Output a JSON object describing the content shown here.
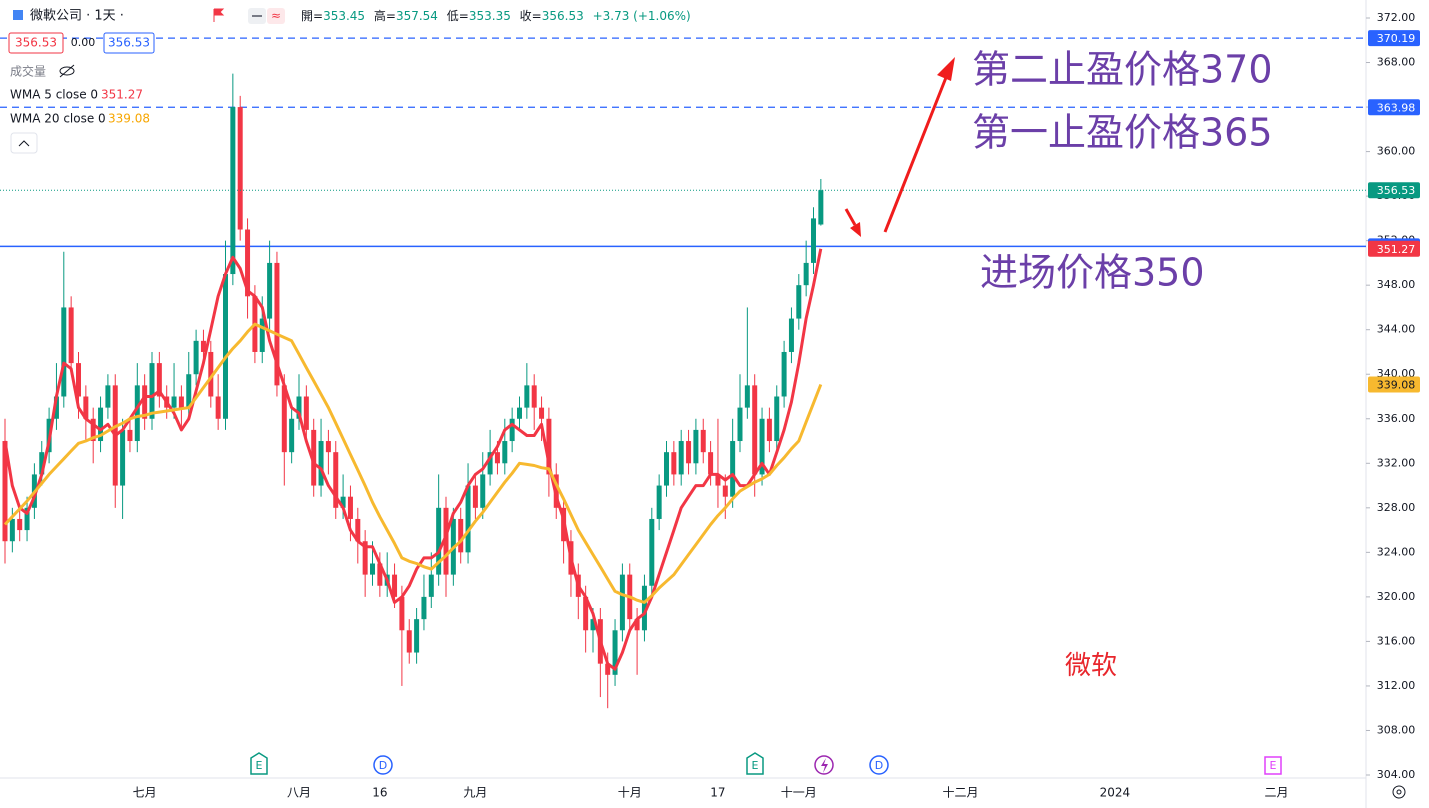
{
  "header": {
    "symbol": "微軟公司 · 1天 ·",
    "spread": "0.00",
    "open_label": "開=",
    "high_label": "高=",
    "low_label": "低=",
    "close_label": "收=",
    "change": "+3.73 (+1.06%)",
    "volume_label": "成交量",
    "wma5_label": "WMA 5 close 0",
    "wma20_label": "WMA 20 close 0"
  },
  "chart_data": {
    "type": "candlestick",
    "categories": [
      null,
      null,
      null,
      null,
      null,
      null,
      null,
      null,
      null,
      null,
      null,
      null,
      null,
      null,
      null,
      null,
      null,
      null,
      null,
      "七月",
      null,
      null,
      null,
      null,
      null,
      null,
      null,
      null,
      null,
      null,
      null,
      null,
      null,
      null,
      null,
      null,
      null,
      null,
      null,
      null,
      "八月",
      null,
      null,
      null,
      null,
      null,
      null,
      null,
      null,
      null,
      null,
      "16",
      null,
      null,
      null,
      null,
      null,
      null,
      null,
      null,
      null,
      null,
      null,
      null,
      "九月",
      null,
      null,
      null,
      null,
      null,
      null,
      null,
      null,
      null,
      null,
      null,
      null,
      null,
      null,
      null,
      null,
      null,
      null,
      null,
      null,
      "十月",
      null,
      null,
      null,
      null,
      null,
      null,
      null,
      null,
      null,
      null,
      null,
      "17",
      null,
      null,
      null,
      null,
      null,
      null,
      null,
      null,
      null,
      null,
      "十一月",
      null,
      null,
      null,
      null,
      null,
      null,
      null,
      null,
      null,
      null,
      null,
      null,
      null,
      null,
      null,
      null,
      null,
      null,
      null,
      null,
      null,
      "十二月",
      null,
      null,
      null,
      null,
      null,
      null,
      null,
      null,
      null,
      null,
      null,
      null,
      null,
      null,
      null,
      null,
      null,
      null,
      null,
      null,
      "2024",
      null,
      null,
      null,
      null,
      null,
      null,
      null,
      null,
      null,
      null,
      null,
      null,
      null,
      null,
      null,
      null,
      null,
      null,
      null,
      null,
      null,
      "二月",
      null,
      null,
      null,
      null,
      null,
      null,
      null,
      null,
      null,
      null,
      null
    ],
    "candles": [
      [
        334,
        336,
        323,
        325
      ],
      [
        325,
        328,
        324,
        327
      ],
      [
        327,
        328,
        325,
        326
      ],
      [
        326,
        329,
        325,
        328
      ],
      [
        328,
        332,
        327,
        331
      ],
      [
        331,
        334,
        330,
        333
      ],
      [
        333,
        337,
        332,
        336
      ],
      [
        336,
        341,
        335,
        338
      ],
      [
        338,
        351,
        337,
        346
      ],
      [
        346,
        347,
        340,
        341
      ],
      [
        341,
        342,
        336,
        338
      ],
      [
        338,
        339,
        334,
        336
      ],
      [
        336,
        337,
        332,
        334
      ],
      [
        334,
        338,
        333,
        337
      ],
      [
        337,
        340,
        336,
        339
      ],
      [
        339,
        340,
        328,
        330
      ],
      [
        330,
        336,
        327,
        335
      ],
      [
        335,
        336,
        333,
        334
      ],
      [
        334,
        341,
        333,
        339
      ],
      [
        339,
        340,
        335,
        336
      ],
      [
        336,
        342,
        335,
        341
      ],
      [
        341,
        342,
        337,
        338
      ],
      [
        338,
        339,
        336,
        337
      ],
      [
        337,
        341,
        336,
        338
      ],
      [
        338,
        339,
        335,
        337
      ],
      [
        337,
        342,
        336,
        340
      ],
      [
        340,
        344,
        339,
        343
      ],
      [
        343,
        344,
        341,
        342
      ],
      [
        342,
        343,
        337,
        338
      ],
      [
        338,
        340,
        335,
        336
      ],
      [
        336,
        352,
        335,
        349
      ],
      [
        349,
        367,
        348,
        364
      ],
      [
        364,
        365,
        352,
        353
      ],
      [
        353,
        354,
        345,
        347
      ],
      [
        347,
        348,
        341,
        342
      ],
      [
        342,
        347,
        341,
        345
      ],
      [
        345,
        352,
        344,
        350
      ],
      [
        350,
        351,
        338,
        339
      ],
      [
        339,
        340,
        330,
        333
      ],
      [
        333,
        337,
        332,
        336
      ],
      [
        336,
        340,
        335,
        338
      ],
      [
        338,
        339,
        334,
        335
      ],
      [
        335,
        336,
        329,
        330
      ],
      [
        330,
        336,
        329,
        334
      ],
      [
        334,
        335,
        331,
        333
      ],
      [
        333,
        334,
        327,
        328
      ],
      [
        328,
        331,
        327,
        329
      ],
      [
        329,
        330,
        325,
        327
      ],
      [
        327,
        328,
        323,
        325
      ],
      [
        325,
        326,
        320,
        322
      ],
      [
        322,
        325,
        321,
        323
      ],
      [
        323,
        324,
        320,
        321
      ],
      [
        321,
        324,
        320,
        322
      ],
      [
        322,
        323,
        319,
        320
      ],
      [
        320,
        321,
        312,
        317
      ],
      [
        317,
        318,
        314,
        315
      ],
      [
        315,
        319,
        314,
        318
      ],
      [
        318,
        322,
        317,
        320
      ],
      [
        320,
        324,
        319,
        322
      ],
      [
        322,
        331,
        321,
        328
      ],
      [
        328,
        329,
        320,
        322
      ],
      [
        322,
        328,
        321,
        327
      ],
      [
        327,
        328,
        323,
        324
      ],
      [
        324,
        332,
        323,
        330
      ],
      [
        330,
        331,
        327,
        328
      ],
      [
        328,
        333,
        327,
        331
      ],
      [
        331,
        335,
        330,
        333
      ],
      [
        333,
        334,
        331,
        332
      ],
      [
        332,
        336,
        331,
        334
      ],
      [
        334,
        337,
        333,
        336
      ],
      [
        336,
        338,
        335,
        337
      ],
      [
        337,
        341,
        336,
        339
      ],
      [
        339,
        340,
        335,
        337
      ],
      [
        337,
        338,
        334,
        336
      ],
      [
        336,
        337,
        329,
        331
      ],
      [
        331,
        332,
        327,
        328
      ],
      [
        328,
        329,
        323,
        325
      ],
      [
        325,
        326,
        320,
        322
      ],
      [
        322,
        323,
        318,
        320
      ],
      [
        320,
        321,
        315,
        317
      ],
      [
        317,
        319,
        315,
        318
      ],
      [
        318,
        319,
        311,
        314
      ],
      [
        314,
        315,
        310,
        313
      ],
      [
        313,
        318,
        312,
        317
      ],
      [
        317,
        323,
        316,
        322
      ],
      [
        322,
        323,
        317,
        318
      ],
      [
        318,
        319,
        313,
        317
      ],
      [
        317,
        322,
        316,
        321
      ],
      [
        321,
        328,
        320,
        327
      ],
      [
        327,
        331,
        326,
        330
      ],
      [
        330,
        334,
        329,
        333
      ],
      [
        333,
        334,
        330,
        331
      ],
      [
        331,
        335,
        330,
        334
      ],
      [
        334,
        335,
        331,
        332
      ],
      [
        332,
        336,
        331,
        335
      ],
      [
        335,
        336,
        332,
        333
      ],
      [
        333,
        334,
        330,
        331
      ],
      [
        331,
        336,
        328,
        330
      ],
      [
        330,
        331,
        327,
        329
      ],
      [
        329,
        336,
        328,
        334
      ],
      [
        334,
        340,
        333,
        337
      ],
      [
        337,
        346,
        336,
        339
      ],
      [
        339,
        340,
        329,
        331
      ],
      [
        331,
        337,
        330,
        336
      ],
      [
        336,
        337,
        333,
        334
      ],
      [
        334,
        339,
        333,
        338
      ],
      [
        338,
        343,
        337,
        342
      ],
      [
        342,
        346,
        341,
        345
      ],
      [
        345,
        349,
        344,
        348
      ],
      [
        348,
        352,
        347,
        350
      ],
      [
        350,
        355,
        349,
        354
      ],
      [
        353.45,
        357.54,
        353.35,
        356.53
      ],
      null,
      null,
      null,
      null,
      null,
      null,
      null,
      null,
      null,
      null,
      null,
      null,
      null,
      null,
      null,
      null,
      null,
      null,
      null,
      null,
      null,
      null,
      null,
      null,
      null,
      null,
      null,
      null,
      null,
      null,
      null,
      null,
      null,
      null,
      null,
      null,
      null,
      null,
      null,
      null,
      null,
      null,
      null,
      null,
      null,
      null,
      null,
      null,
      null,
      null,
      null,
      null,
      null,
      null,
      null,
      null,
      null,
      null,
      null,
      null,
      null,
      null,
      null,
      null,
      null,
      null,
      null,
      null,
      null,
      null,
      null,
      null,
      null
    ],
    "up_color": "#089981",
    "down_color": "#f23645",
    "series": [
      {
        "name": "WMA 5",
        "color": "#f23645",
        "values": [
          334,
          330,
          328,
          327.5,
          329,
          331,
          334,
          338,
          341,
          340.5,
          337,
          336,
          335.5,
          335,
          335.5,
          334.5,
          335,
          336,
          337,
          338,
          338,
          338.5,
          337.5,
          336.5,
          335,
          336,
          338.5,
          341,
          344,
          347,
          349,
          350.5,
          349.5,
          347.5,
          347,
          346,
          343,
          341,
          339,
          337,
          336.5,
          334,
          332,
          331.5,
          330,
          329,
          328,
          326,
          325,
          324.5,
          324.5,
          323,
          321.5,
          319.5,
          320,
          321,
          322.5,
          323.5,
          323.5,
          324,
          325.5,
          327.5,
          328.5,
          330,
          331,
          331.5,
          332.5,
          333.5,
          335,
          335.5,
          335,
          334.5,
          334.5,
          335.5,
          332,
          329,
          327,
          323.5,
          321,
          320,
          318.5,
          316,
          314,
          313.5,
          315,
          317,
          318,
          318.5,
          320,
          322,
          324,
          326,
          328,
          329,
          330,
          330,
          331,
          331,
          330.5,
          331,
          330,
          330,
          331,
          332,
          331,
          333,
          335,
          337.5,
          341,
          345,
          348,
          351.27,
          null,
          null,
          null,
          null,
          null,
          null,
          null,
          null,
          null,
          null,
          null,
          null,
          null,
          null,
          null,
          null,
          null,
          null,
          null,
          null,
          null,
          null,
          null,
          null,
          null,
          null,
          null,
          null,
          null,
          null,
          null,
          null,
          null,
          null,
          null,
          null,
          null,
          null,
          null,
          null,
          null,
          null,
          null,
          null,
          null,
          null,
          null,
          null,
          null,
          null,
          null,
          null,
          null,
          null,
          null,
          null,
          null,
          null,
          null,
          null,
          null,
          null,
          null,
          null,
          null,
          null,
          null,
          null,
          null,
          null,
          null,
          null,
          null
        ]
      },
      {
        "name": "WMA 20",
        "color": "#f7b92f",
        "values": [
          326.5,
          327.2,
          327.9,
          328.6,
          329.4,
          330.2,
          331,
          331.7,
          332.4,
          333.1,
          333.8,
          334,
          334.3,
          334.5,
          334.9,
          335.3,
          335.6,
          336,
          336.2,
          336.3,
          336.5,
          336.6,
          336.7,
          336.8,
          336.9,
          337,
          337.9,
          338.8,
          339.7,
          340.6,
          341.5,
          342.3,
          343,
          343.8,
          344.5,
          344.2,
          343.9,
          343.6,
          343.3,
          343,
          341.8,
          340.6,
          339.4,
          338.2,
          337,
          335.6,
          334.2,
          332.8,
          331.4,
          330,
          328.5,
          327.2,
          326,
          324.8,
          323.5,
          323.2,
          323,
          322.7,
          322.5,
          323.1,
          323.7,
          324.4,
          325,
          325.9,
          326.8,
          327.6,
          328.5,
          329.4,
          330.3,
          331.1,
          332,
          331.9,
          331.8,
          331.6,
          331.5,
          330.1,
          328.8,
          327.4,
          326,
          324.9,
          323.8,
          322.7,
          321.6,
          320.5,
          320.2,
          320,
          319.7,
          319.5,
          320.1,
          320.8,
          321.4,
          322,
          322.9,
          323.8,
          324.7,
          325.6,
          326.5,
          327.3,
          328,
          328.8,
          329.5,
          329.9,
          330.3,
          330.6,
          331,
          331.8,
          332.5,
          333.3,
          334,
          335.7,
          337.4,
          339.08,
          null,
          null,
          null,
          null,
          null,
          null,
          null,
          null,
          null,
          null,
          null,
          null,
          null,
          null,
          null,
          null,
          null,
          null,
          null,
          null,
          null,
          null,
          null,
          null,
          null,
          null,
          null,
          null,
          null,
          null,
          null,
          null,
          null,
          null,
          null,
          null,
          null,
          null,
          null,
          null,
          null,
          null,
          null,
          null,
          null,
          null,
          null,
          null,
          null,
          null,
          null,
          null,
          null,
          null,
          null,
          null,
          null,
          null,
          null,
          null,
          null,
          null,
          null,
          null,
          null,
          null,
          null,
          null,
          null,
          null,
          null,
          null,
          null
        ]
      }
    ],
    "price_lines": [
      {
        "value": 370.19,
        "color": "#2962ff",
        "style": "dashed"
      },
      {
        "value": 363.98,
        "color": "#2962ff",
        "style": "dashed"
      },
      {
        "value": 351.49,
        "color": "#2962ff",
        "style": "solid"
      }
    ],
    "ylim": [
      304,
      372
    ],
    "yticks": [
      {
        "value": 304,
        "label": "304.00"
      },
      {
        "value": 308,
        "label": "308.00"
      },
      {
        "value": 312,
        "label": "312.00"
      },
      {
        "value": 316,
        "label": "316.00"
      },
      {
        "value": 320,
        "label": "320.00"
      },
      {
        "value": 324,
        "label": "324.00"
      },
      {
        "value": 328,
        "label": "328.00"
      },
      {
        "value": 332,
        "label": "332.00"
      },
      {
        "value": 336,
        "label": "336.00"
      },
      {
        "value": 340,
        "label": "340.00"
      },
      {
        "value": 344,
        "label": "344.00"
      },
      {
        "value": 348,
        "label": "348.00"
      },
      {
        "value": 352,
        "label": "352.00"
      },
      {
        "value": 356,
        "label": "356.00"
      },
      {
        "value": 360,
        "label": "360.00"
      },
      {
        "value": 364,
        "label": "364.00"
      },
      {
        "value": 368,
        "label": "368.00"
      },
      {
        "value": 372,
        "label": "372.00"
      }
    ],
    "annotations": [
      "第二止盈价格370",
      "第一止盈价格365",
      "进场价格350",
      "微软"
    ]
  },
  "events": [
    "E",
    "D",
    "E",
    "D",
    "E"
  ]
}
